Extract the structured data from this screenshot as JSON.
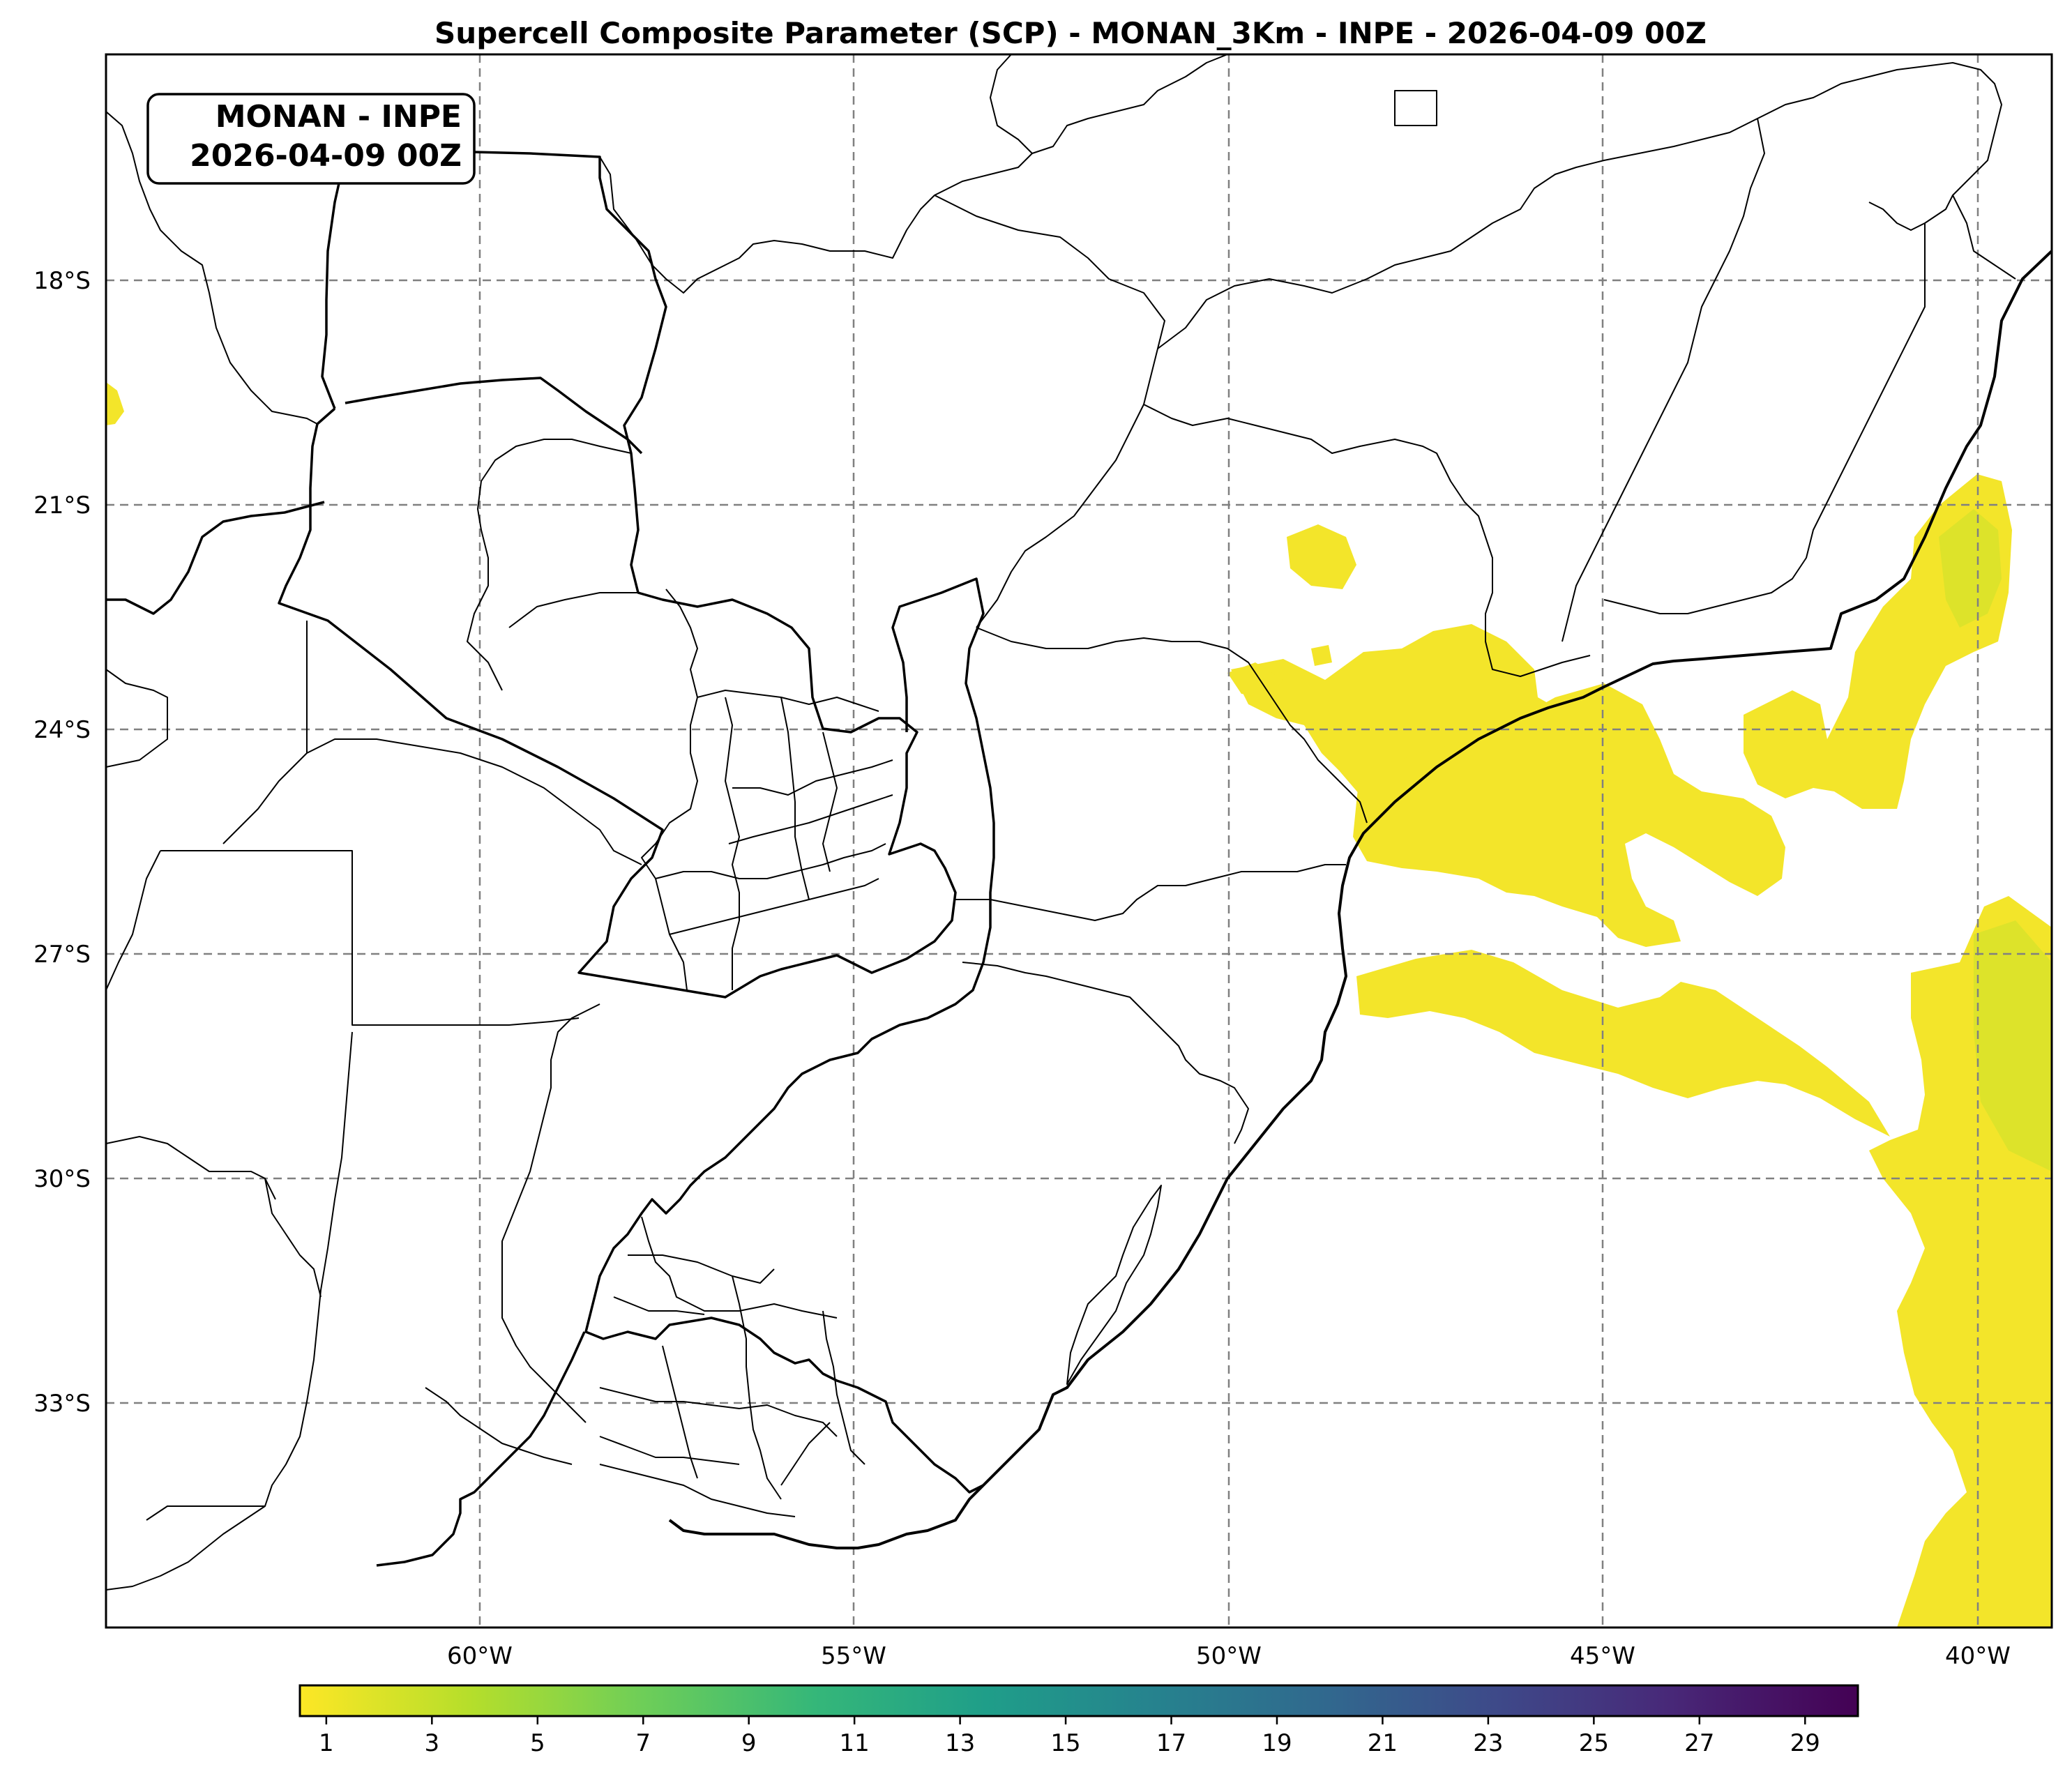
{
  "map": {
    "title": "Supercell Composite Parameter (SCP) - MONAN_3Km - INPE - 2026-04-09 00Z",
    "stamp_line1": "MONAN - INPE",
    "stamp_line2": "2026-04-09 00Z",
    "lon_labels": [
      "60°W",
      "55°W",
      "50°W",
      "45°W",
      "40°W"
    ],
    "lat_labels": [
      "18°S",
      "21°S",
      "24°S",
      "27°S",
      "30°S",
      "33°S"
    ],
    "lon_range": [
      -65,
      -39
    ],
    "lat_range": [
      -15,
      -36.5
    ],
    "gridlines": true
  },
  "colorbar": {
    "colormap": "viridis_r",
    "range": [
      0.5,
      30
    ],
    "ticks": [
      "1",
      "3",
      "5",
      "7",
      "9",
      "11",
      "13",
      "15",
      "17",
      "19",
      "21",
      "23",
      "25",
      "27",
      "29"
    ],
    "colors": [
      "#fde725",
      "#b5de2b",
      "#6ece58",
      "#35b779",
      "#1f9e89",
      "#26828e",
      "#31688e",
      "#3e4989",
      "#482878",
      "#440154"
    ]
  },
  "field_colors": {
    "low": "#f3e52a",
    "mid": "#dde32a",
    "high": "#c4df32"
  }
}
